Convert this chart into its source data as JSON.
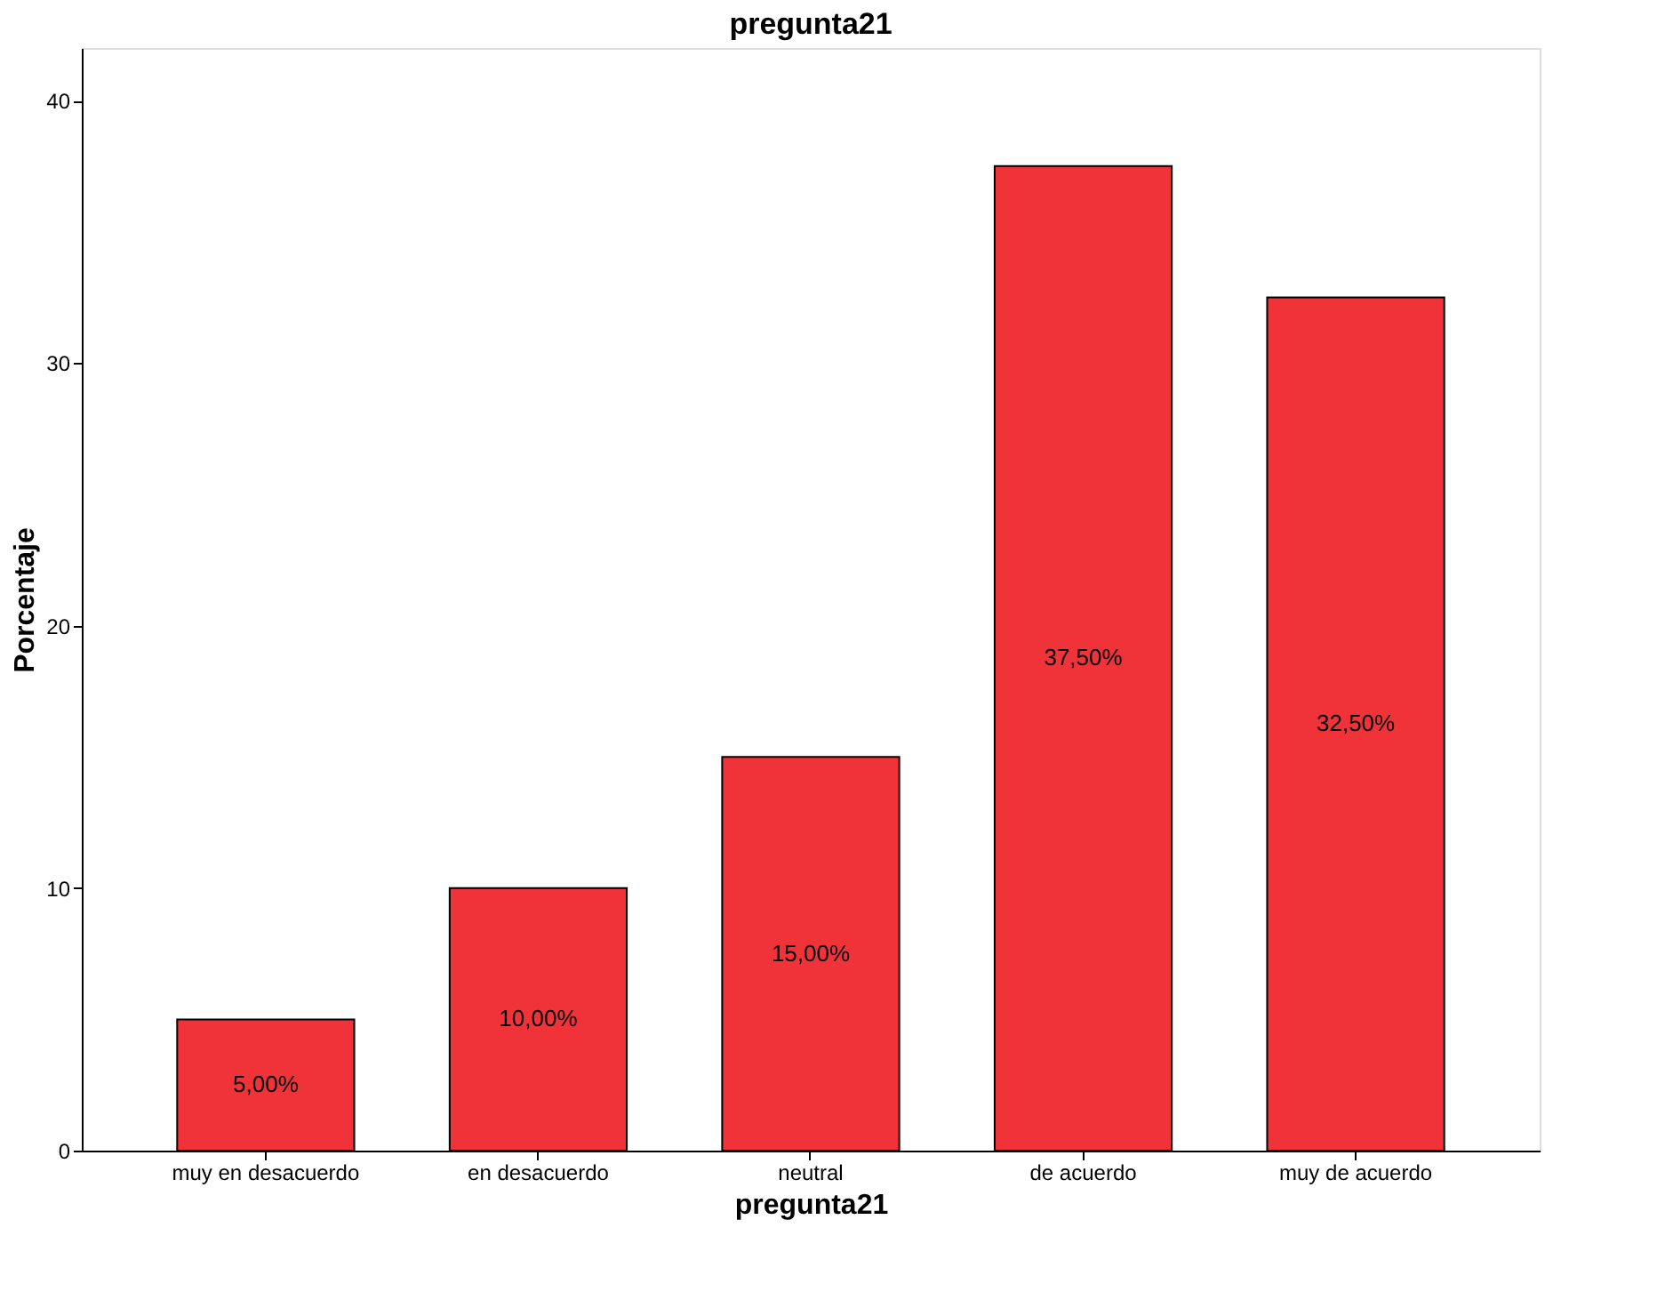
{
  "chart_data": {
    "type": "bar",
    "title": "pregunta21",
    "xlabel": "pregunta21",
    "ylabel": "Porcentaje",
    "categories": [
      "muy en desacuerdo",
      "en desacuerdo",
      "neutral",
      "de acuerdo",
      "muy de acuerdo"
    ],
    "values": [
      5,
      10,
      15,
      37.5,
      32.5
    ],
    "value_labels": [
      "5,00%",
      "10,00%",
      "15,00%",
      "37,50%",
      "32,50%"
    ],
    "color": "#ef3339",
    "ylim": [
      0,
      42
    ],
    "yticks": [
      0,
      10,
      20,
      30,
      40
    ],
    "grid": false
  }
}
